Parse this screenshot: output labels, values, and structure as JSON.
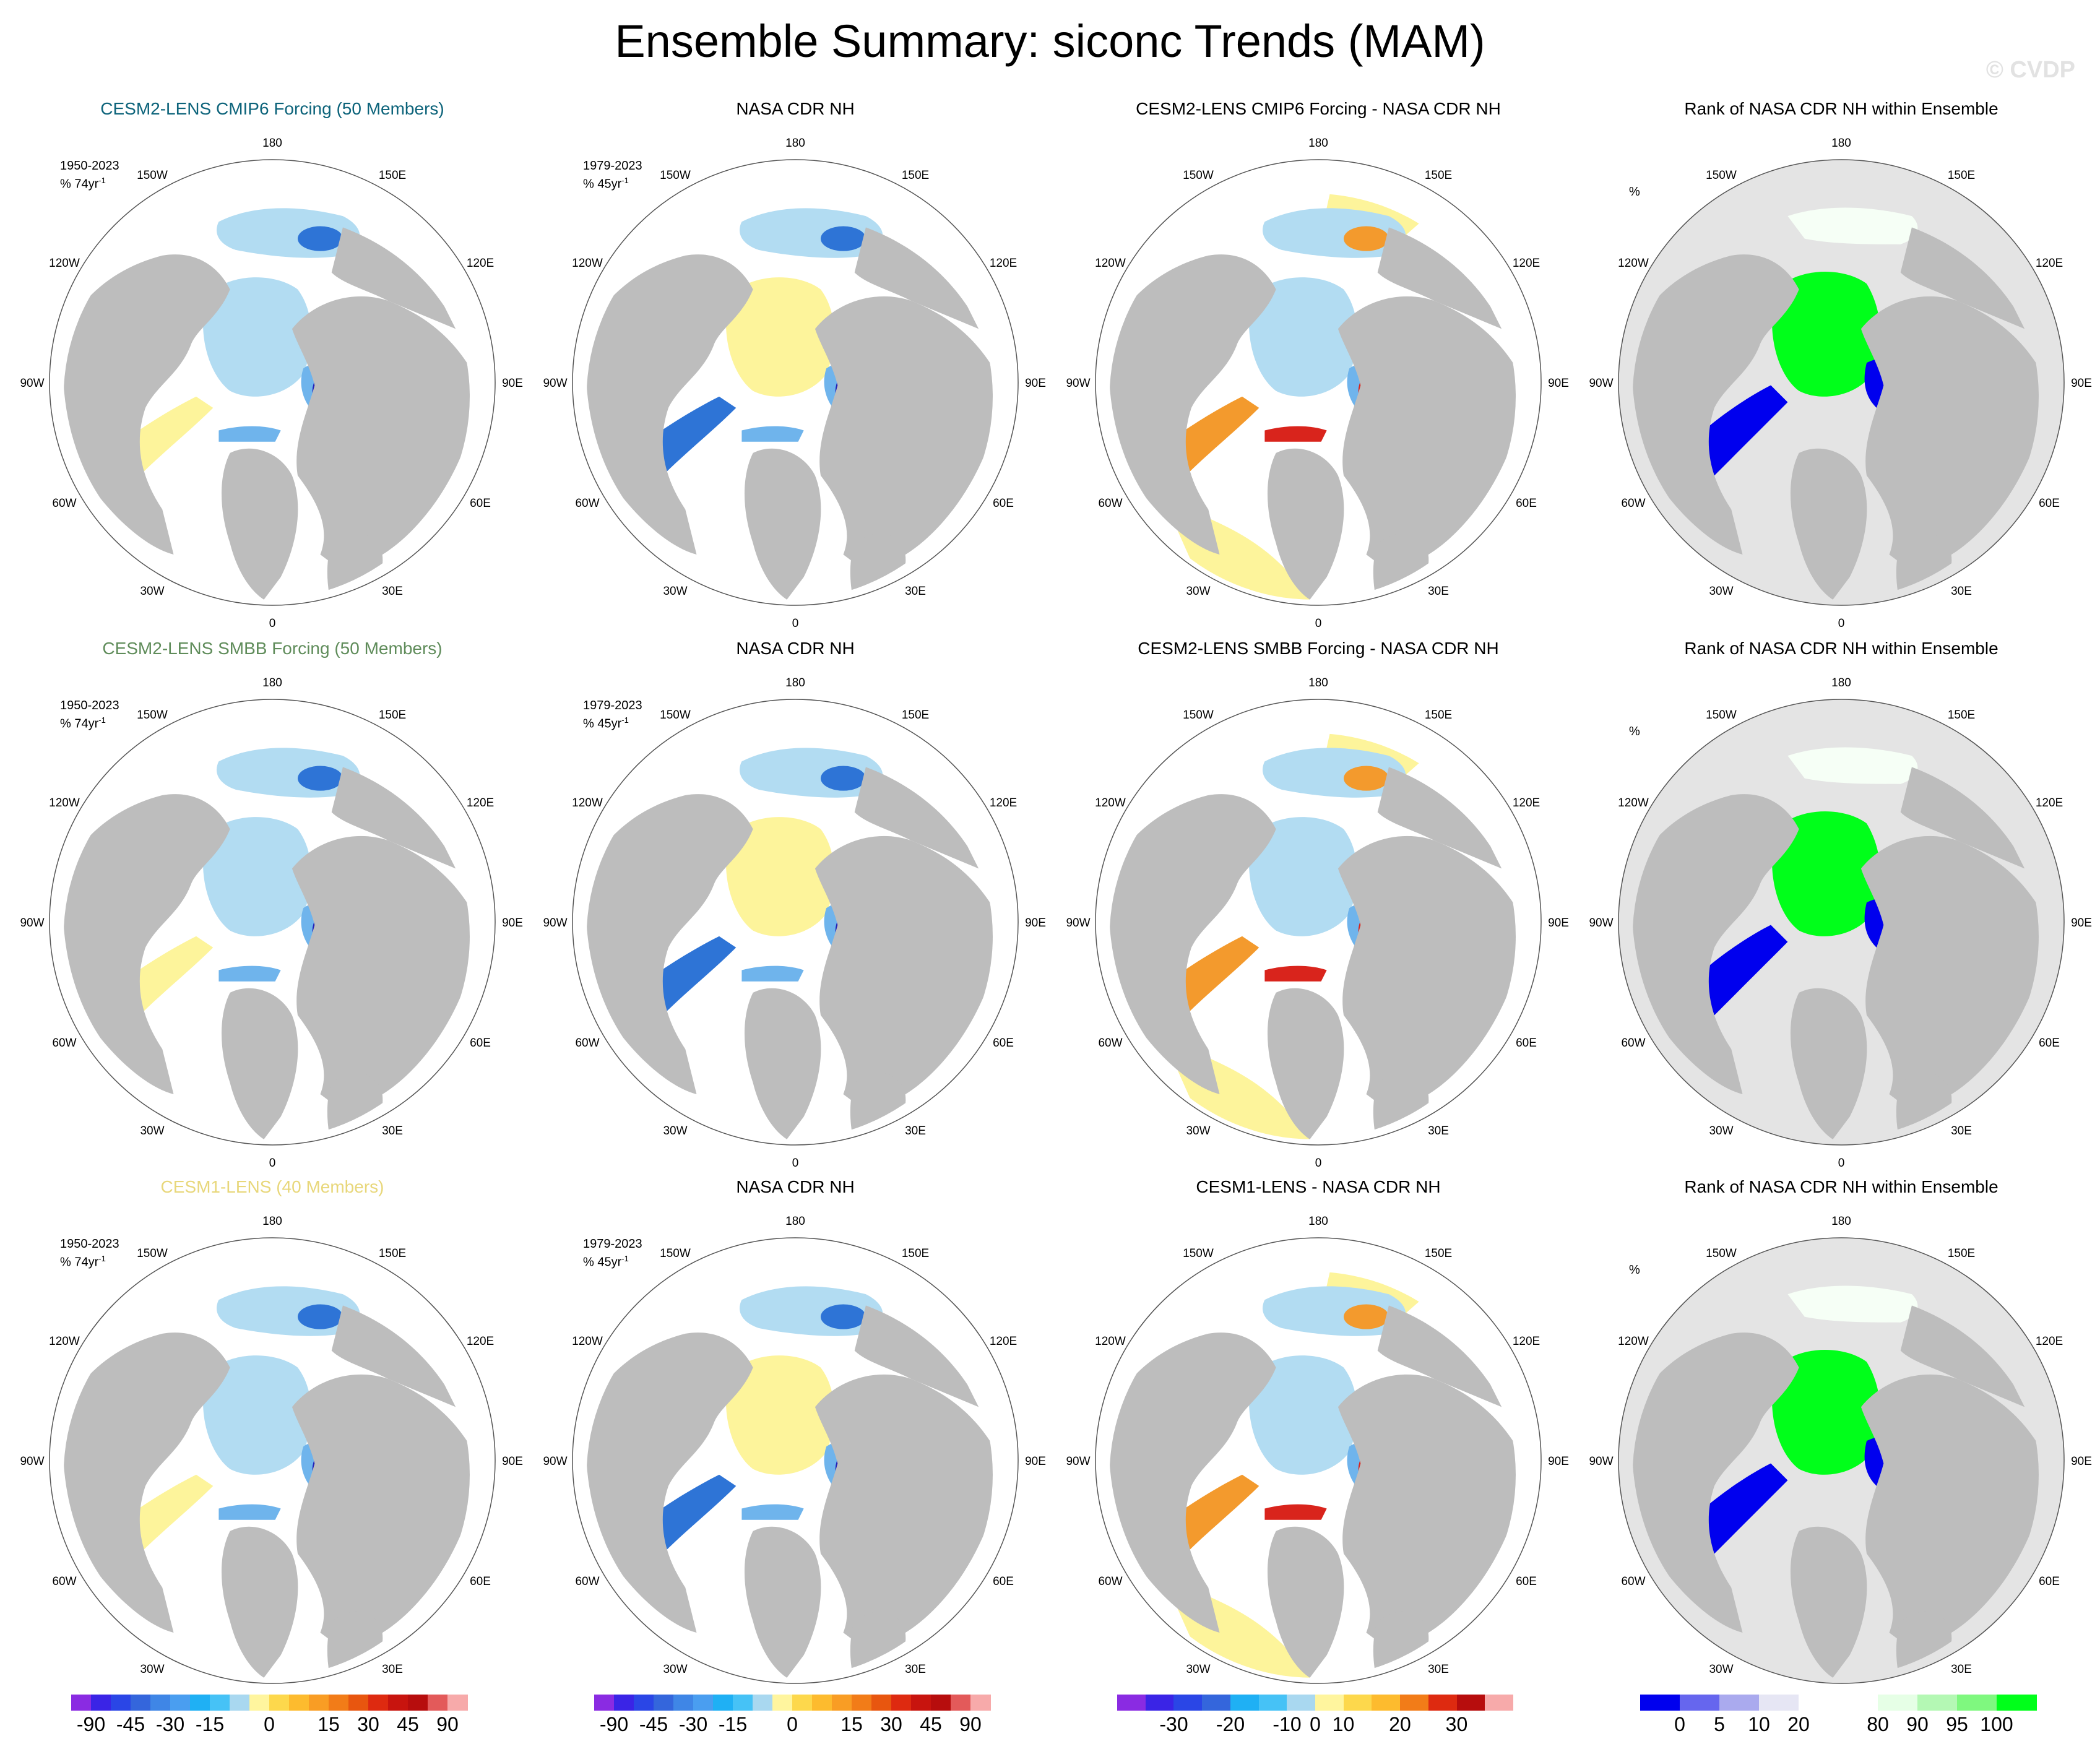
{
  "title": "Ensemble Summary: siconc Trends (MAM)",
  "watermark": "© CVDP",
  "lon_labels": [
    "180",
    "150E",
    "120E",
    "90E",
    "60E",
    "30E",
    "0",
    "30W",
    "60W",
    "90W",
    "120W",
    "150W"
  ],
  "colors": {
    "land": "#bdbdbd",
    "ocean_bg_trend": "#ffffff",
    "ocean_bg_rank": "#e4e4e4",
    "ice_light": "#b2dcf2",
    "ice_mid": "#6fb4ec",
    "ice_dark": "#2e74d6",
    "ice_deep": "#2222b8",
    "pos_light": "#fdf49b",
    "pos_warm": "#f39a2d",
    "pos_red": "#d9241c",
    "rank_low": "#0000ee",
    "rank_high": "#00ff1a",
    "rank_white": "#f6fff6"
  },
  "panels": [
    [
      {
        "type": "model",
        "title": "CESM2-LENS CMIP6 Forcing (50 Members)",
        "title_color": "#0c637a",
        "period": "1950-2023",
        "units": "% 74yr",
        "units_exp": "-1"
      },
      {
        "type": "obs",
        "title": "NASA CDR NH",
        "title_color": "#000000",
        "period": "1979-2023",
        "units": "% 45yr",
        "units_exp": "-1"
      },
      {
        "type": "diff",
        "title": "CESM2-LENS CMIP6 Forcing - NASA CDR NH",
        "title_color": "#000000"
      },
      {
        "type": "rank",
        "title": "Rank of NASA CDR NH within Ensemble",
        "title_color": "#000000",
        "units": "%"
      }
    ],
    [
      {
        "type": "model",
        "title": "CESM2-LENS SMBB Forcing (50 Members)",
        "title_color": "#5f8c5a",
        "period": "1950-2023",
        "units": "% 74yr",
        "units_exp": "-1"
      },
      {
        "type": "obs",
        "title": "NASA CDR NH",
        "title_color": "#000000",
        "period": "1979-2023",
        "units": "% 45yr",
        "units_exp": "-1"
      },
      {
        "type": "diff",
        "title": "CESM2-LENS SMBB Forcing - NASA CDR NH",
        "title_color": "#000000"
      },
      {
        "type": "rank",
        "title": "Rank of NASA CDR NH within Ensemble",
        "title_color": "#000000",
        "units": "%"
      }
    ],
    [
      {
        "type": "model",
        "title": "CESM1-LENS (40 Members)",
        "title_color": "#e8d77a",
        "period": "1950-2023",
        "units": "% 74yr",
        "units_exp": "-1"
      },
      {
        "type": "obs",
        "title": "NASA CDR NH",
        "title_color": "#000000",
        "period": "1979-2023",
        "units": "% 45yr",
        "units_exp": "-1"
      },
      {
        "type": "diff",
        "title": "CESM1-LENS - NASA CDR NH",
        "title_color": "#000000"
      },
      {
        "type": "rank",
        "title": "Rank of NASA CDR NH within Ensemble",
        "title_color": "#000000",
        "units": "%"
      }
    ]
  ],
  "colorbars": [
    {
      "name": "trend-colorbar-model",
      "colors": [
        "#8a2be2",
        "#3a24e6",
        "#2a46e6",
        "#3466dc",
        "#3f86e6",
        "#4a9ef0",
        "#1fb0f4",
        "#46c2f6",
        "#a9d8f0",
        "#fff59e",
        "#fdd84c",
        "#fdbb2e",
        "#f99d24",
        "#f27c18",
        "#e8560f",
        "#de2a10",
        "#c8140e",
        "#b70d0d",
        "#e35a5a",
        "#f7aaaa"
      ],
      "labels": [
        "-90",
        "-45",
        "-30",
        "-15",
        "0",
        "15",
        "30",
        "45",
        "90"
      ],
      "label_positions": [
        0.05,
        0.15,
        0.25,
        0.35,
        0.5,
        0.65,
        0.75,
        0.85,
        0.95
      ]
    },
    {
      "name": "trend-colorbar-obs",
      "colors": [
        "#8a2be2",
        "#3a24e6",
        "#2a46e6",
        "#3466dc",
        "#3f86e6",
        "#4a9ef0",
        "#1fb0f4",
        "#46c2f6",
        "#a9d8f0",
        "#fff59e",
        "#fdd84c",
        "#fdbb2e",
        "#f99d24",
        "#f27c18",
        "#e8560f",
        "#de2a10",
        "#c8140e",
        "#b70d0d",
        "#e35a5a",
        "#f7aaaa"
      ],
      "labels": [
        "-90",
        "-45",
        "-30",
        "-15",
        "0",
        "15",
        "30",
        "45",
        "90"
      ],
      "label_positions": [
        0.05,
        0.15,
        0.25,
        0.35,
        0.5,
        0.65,
        0.75,
        0.85,
        0.95
      ]
    },
    {
      "name": "diff-colorbar",
      "colors": [
        "#8a2be2",
        "#3a24e6",
        "#2a46e6",
        "#3466dc",
        "#1fb0f4",
        "#46c2f6",
        "#a9d8f0",
        "#fff59e",
        "#fdd84c",
        "#fdbb2e",
        "#f27c18",
        "#de2a10",
        "#b70d0d",
        "#f7aaaa"
      ],
      "labels": [
        "-30",
        "-20",
        "-10",
        "0",
        "10",
        "20",
        "30"
      ],
      "label_positions": [
        0.143,
        0.286,
        0.429,
        0.5,
        0.571,
        0.714,
        0.857
      ]
    },
    {
      "name": "rank-colorbar",
      "colors": [
        "#0000ee",
        "#6666ee",
        "#aaaaee",
        "#e6e6f4",
        "#ffffff",
        "#ffffff",
        "#e6ffe6",
        "#b4f8b4",
        "#7ff87f",
        "#00ff1a"
      ],
      "labels": [
        "0",
        "5",
        "10",
        "20",
        "80",
        "90",
        "95",
        "100"
      ],
      "label_positions": [
        0.1,
        0.2,
        0.3,
        0.4,
        0.6,
        0.7,
        0.8,
        0.9
      ]
    }
  ],
  "chart_data": [
    {
      "type": "heatmap",
      "title": "CESM2-LENS CMIP6 Forcing (50 Members)",
      "projection": "north polar stereographic",
      "variable": "siconc trend",
      "season": "MAM",
      "period": "1950-2023",
      "units": "% 74yr-1"
    },
    {
      "type": "heatmap",
      "title": "NASA CDR NH",
      "variable": "siconc trend",
      "season": "MAM",
      "period": "1979-2023",
      "units": "% 45yr-1"
    },
    {
      "type": "heatmap",
      "title": "CESM2-LENS CMIP6 Forcing - NASA CDR NH",
      "variable": "siconc trend difference"
    },
    {
      "type": "heatmap",
      "title": "Rank of NASA CDR NH within Ensemble",
      "units": "%"
    },
    {
      "type": "heatmap",
      "title": "CESM2-LENS SMBB Forcing (50 Members)",
      "period": "1950-2023",
      "units": "% 74yr-1"
    },
    {
      "type": "heatmap",
      "title": "NASA CDR NH",
      "period": "1979-2023",
      "units": "% 45yr-1"
    },
    {
      "type": "heatmap",
      "title": "CESM2-LENS SMBB Forcing - NASA CDR NH"
    },
    {
      "type": "heatmap",
      "title": "Rank of NASA CDR NH within Ensemble",
      "units": "%"
    },
    {
      "type": "heatmap",
      "title": "CESM1-LENS (40 Members)",
      "period": "1950-2023",
      "units": "% 74yr-1"
    },
    {
      "type": "heatmap",
      "title": "NASA CDR NH",
      "period": "1979-2023",
      "units": "% 45yr-1"
    },
    {
      "type": "heatmap",
      "title": "CESM1-LENS - NASA CDR NH"
    },
    {
      "type": "heatmap",
      "title": "Rank of NASA CDR NH within Ensemble",
      "units": "%"
    }
  ]
}
